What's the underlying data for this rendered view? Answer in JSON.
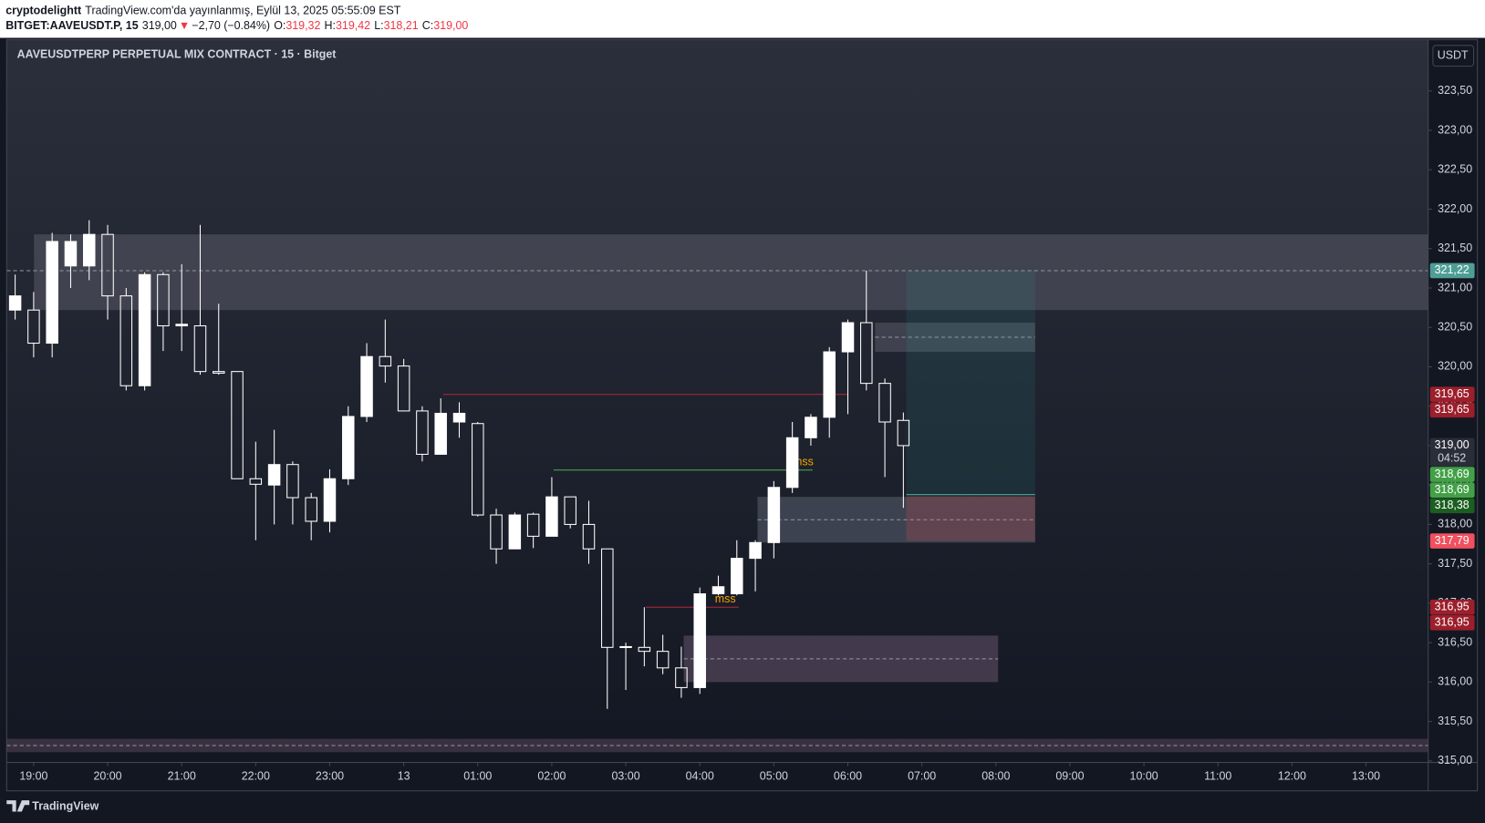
{
  "header": {
    "user": "cryptodelightt",
    "published": "TradingView.com'da yayınlanmış, Eylül 13, 2025 05:55:09 EST",
    "symbol": "BITGET:AAVEUSDT.P, 15",
    "last": "319,00",
    "arrow": "▼",
    "change": "−2,70 (−0.84%)",
    "o_label": "O:",
    "o": "319,32",
    "h_label": "H:",
    "h": "319,42",
    "l_label": "L:",
    "l": "318,21",
    "c_label": "C:",
    "c": "319,00"
  },
  "footer": {
    "logo": "TradingView"
  },
  "chart_data": {
    "type": "candlestick",
    "title": "AAVEUSDTPERP PERPETUAL MIX CONTRACT · 15 · Bitget",
    "currency": "USDT",
    "x": [
      0,
      1,
      2,
      3,
      4,
      5,
      6,
      7,
      8,
      9,
      10,
      11,
      12,
      13,
      14,
      15,
      16,
      17,
      18,
      19,
      20,
      21,
      22,
      23,
      24,
      25,
      26,
      27,
      28,
      29,
      30,
      31,
      32,
      33,
      34,
      35,
      36,
      37,
      38,
      39,
      40,
      41,
      42,
      43,
      44,
      45,
      46,
      47,
      48
    ],
    "open": [
      320.72,
      320.72,
      320.3,
      321.28,
      321.28,
      321.68,
      320.9,
      319.76,
      321.17,
      320.52,
      320.52,
      319.94,
      319.94,
      318.58,
      318.5,
      318.76,
      318.34,
      318.04,
      318.58,
      319.37,
      320.13,
      320.01,
      319.44,
      318.89,
      319.3,
      319.28,
      318.12,
      317.69,
      318.13,
      317.85,
      318.35,
      318.0,
      317.69,
      316.44,
      316.44,
      316.39,
      316.18,
      315.93,
      317.12,
      317.12,
      317.57,
      317.77,
      318.47,
      319.1,
      319.36,
      320.19,
      320.56,
      319.79,
      319.32
    ],
    "high": [
      321.17,
      320.95,
      321.7,
      321.68,
      321.86,
      321.8,
      321.0,
      321.2,
      321.2,
      321.3,
      321.8,
      320.8,
      319.94,
      319.05,
      319.2,
      318.8,
      318.4,
      318.7,
      319.5,
      320.3,
      320.6,
      320.1,
      319.5,
      319.6,
      319.55,
      319.3,
      318.2,
      318.15,
      318.15,
      318.6,
      318.35,
      318.3,
      317.69,
      316.5,
      316.95,
      316.6,
      316.45,
      317.2,
      317.35,
      317.8,
      317.8,
      318.55,
      319.3,
      319.4,
      320.25,
      320.6,
      321.22,
      319.85,
      319.42
    ],
    "low": [
      320.6,
      320.12,
      320.12,
      321.0,
      321.1,
      320.6,
      319.7,
      319.7,
      320.2,
      320.2,
      319.9,
      319.9,
      318.58,
      317.8,
      318.0,
      318.0,
      317.8,
      317.9,
      318.5,
      319.3,
      319.8,
      319.44,
      318.8,
      318.89,
      319.1,
      318.1,
      317.5,
      317.69,
      317.7,
      317.85,
      317.95,
      317.5,
      315.66,
      315.9,
      316.2,
      316.1,
      315.8,
      315.85,
      317.1,
      317.1,
      317.15,
      317.57,
      318.4,
      319.0,
      319.1,
      319.4,
      319.7,
      318.6,
      318.21
    ],
    "close": [
      320.9,
      320.3,
      321.59,
      321.59,
      321.68,
      320.9,
      319.76,
      321.17,
      320.52,
      320.54,
      319.94,
      319.92,
      318.58,
      318.51,
      318.76,
      318.34,
      318.04,
      318.58,
      319.37,
      320.13,
      320.01,
      319.44,
      318.89,
      319.41,
      319.41,
      318.12,
      317.69,
      318.12,
      317.85,
      318.35,
      318.0,
      317.69,
      316.44,
      316.45,
      316.39,
      316.18,
      315.93,
      317.12,
      317.21,
      317.57,
      317.77,
      318.47,
      319.1,
      319.36,
      320.19,
      320.56,
      319.79,
      319.3,
      319.0
    ],
    "up_color": "#ffffff",
    "down_color": "#ffffff",
    "down_hollow": true,
    "xlim": [
      -0.46,
      76.36
    ],
    "ylim": [
      314.98,
      324.15
    ],
    "grid": false,
    "xticks": [
      {
        "value": 1,
        "label": "19:00"
      },
      {
        "value": 5,
        "label": "20:00"
      },
      {
        "value": 9,
        "label": "21:00"
      },
      {
        "value": 13,
        "label": "22:00"
      },
      {
        "value": 17,
        "label": "23:00"
      },
      {
        "value": 21,
        "label": "13"
      },
      {
        "value": 25,
        "label": "01:00"
      },
      {
        "value": 29,
        "label": "02:00"
      },
      {
        "value": 33,
        "label": "03:00"
      },
      {
        "value": 37,
        "label": "04:00"
      },
      {
        "value": 41,
        "label": "05:00"
      },
      {
        "value": 45,
        "label": "06:00"
      },
      {
        "value": 49,
        "label": "07:00"
      },
      {
        "value": 53,
        "label": "08:00"
      },
      {
        "value": 57,
        "label": "09:00"
      },
      {
        "value": 61,
        "label": "10:00"
      },
      {
        "value": 65,
        "label": "11:00"
      },
      {
        "value": 69,
        "label": "12:00"
      },
      {
        "value": 73,
        "label": "13:00"
      }
    ],
    "yticks": [
      {
        "value": 315,
        "label": "315,00"
      },
      {
        "value": 315.5,
        "label": "315,50"
      },
      {
        "value": 316,
        "label": "316,00"
      },
      {
        "value": 316.5,
        "label": "316,50"
      },
      {
        "value": 317,
        "label": "317,00"
      },
      {
        "value": 317.5,
        "label": "317,50"
      },
      {
        "value": 318,
        "label": "318,00"
      },
      {
        "value": 318.5,
        "label": "318,50"
      },
      {
        "value": 319,
        "label": "319,00"
      },
      {
        "value": 319.5,
        "label": "319,50"
      },
      {
        "value": 320,
        "label": "320,00"
      },
      {
        "value": 320.5,
        "label": "320,50"
      },
      {
        "value": 321,
        "label": "321,00"
      },
      {
        "value": 321.5,
        "label": "321,50"
      },
      {
        "value": 322,
        "label": "322,00"
      },
      {
        "value": 322.5,
        "label": "322,50"
      },
      {
        "value": 323,
        "label": "323,00"
      },
      {
        "value": 323.5,
        "label": "323,50"
      }
    ],
    "zones": [
      {
        "from": 1.02,
        "to": 76.36,
        "top": 321.68,
        "bottom": 320.72,
        "color": "#5d606b",
        "midline": false
      },
      {
        "from": 46.47,
        "to": 55.12,
        "top": 320.56,
        "bottom": 320.19,
        "color": "#5d606b",
        "midline": true
      },
      {
        "from": 40.12,
        "to": 55.12,
        "top": 318.35,
        "bottom": 317.77,
        "color": "#5f6675",
        "midline": true
      },
      {
        "from": 36.13,
        "to": 53.12,
        "top": 316.59,
        "bottom": 316.0,
        "color": "#6e5a72",
        "midline": true
      },
      {
        "from": -0.46,
        "to": 76.36,
        "top": 315.28,
        "bottom": 315.11,
        "color": "#5e4a5e",
        "midline": true
      }
    ],
    "position": {
      "from": 48.16,
      "to": 55.12,
      "target": 321.22,
      "entry": 318.38,
      "stop": 317.79,
      "profit_color": "#26a69a",
      "loss_color": "#ef5350"
    },
    "lines": [
      {
        "price": 319.65,
        "from": 23.13,
        "to": 44.98,
        "color": "#b2283a"
      },
      {
        "price": 318.69,
        "from": 29.1,
        "to": 43.1,
        "color": "#4caf50",
        "label": "mss",
        "label_at": 42.58
      },
      {
        "price": 316.95,
        "from": 34.08,
        "to": 39.1,
        "color": "#b2283a",
        "label": "mss",
        "label_at": 38.38
      }
    ],
    "price_tags": [
      {
        "value": 321.22,
        "label": "321,22",
        "color": "#4f9e96",
        "price_line": true
      },
      {
        "value": 319.65,
        "label": "319,65",
        "color": "#9c1f2c"
      },
      {
        "value": 319.65,
        "label": "319,65",
        "color": "#9c1f2c"
      },
      {
        "value": 319.0,
        "label": "319,00",
        "color": "#2a2e39",
        "countdown": "04:52"
      },
      {
        "value": 318.69,
        "label": "318,69",
        "color": "#43a047"
      },
      {
        "value": 318.69,
        "label": "318,69",
        "color": "#43a047"
      },
      {
        "value": 318.38,
        "label": "318,38",
        "color": "#1b5e20"
      },
      {
        "value": 317.79,
        "label": "317,79",
        "color": "#f0505f"
      },
      {
        "value": 316.95,
        "label": "316,95",
        "color": "#9c1f2c"
      },
      {
        "value": 316.95,
        "label": "316,95",
        "color": "#9c1f2c"
      }
    ]
  }
}
